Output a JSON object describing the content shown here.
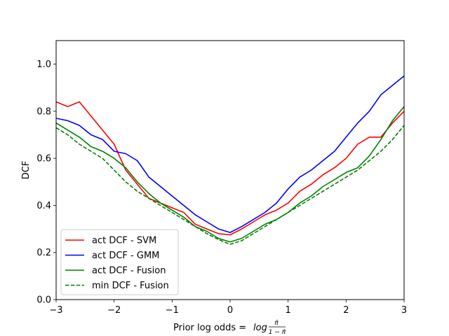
{
  "chart_data": {
    "type": "line",
    "title": "",
    "xlabel_prefix": "Prior log odds = ",
    "xlabel_func": "log",
    "xlabel_num": "π̃",
    "xlabel_den": "1 − π̃",
    "ylabel": "DCF",
    "xlim": [
      -3,
      3
    ],
    "ylim": [
      0,
      1.1
    ],
    "xticks": [
      -3,
      -2,
      -1,
      0,
      1,
      2,
      3
    ],
    "xtick_labels": [
      "−3",
      "−2",
      "−1",
      "0",
      "1",
      "2",
      "3"
    ],
    "yticks": [
      0.0,
      0.2,
      0.4,
      0.6,
      0.8,
      1.0
    ],
    "ytick_labels": [
      "0.0",
      "0.2",
      "0.4",
      "0.6",
      "0.8",
      "1.0"
    ],
    "grid": false,
    "legend_position": "lower-left",
    "x": [
      -3.0,
      -2.8,
      -2.6,
      -2.4,
      -2.2,
      -2.0,
      -1.8,
      -1.6,
      -1.4,
      -1.2,
      -1.0,
      -0.8,
      -0.6,
      -0.4,
      -0.2,
      0.0,
      0.2,
      0.4,
      0.6,
      0.8,
      1.0,
      1.2,
      1.4,
      1.6,
      1.8,
      2.0,
      2.2,
      2.4,
      2.6,
      2.8,
      3.0
    ],
    "series": [
      {
        "name": "act DCF - SVM",
        "color": "#ff0000",
        "dash": "solid",
        "values": [
          0.84,
          0.82,
          0.84,
          0.78,
          0.72,
          0.66,
          0.55,
          0.49,
          0.43,
          0.41,
          0.39,
          0.37,
          0.32,
          0.3,
          0.28,
          0.275,
          0.3,
          0.33,
          0.36,
          0.38,
          0.41,
          0.46,
          0.49,
          0.53,
          0.56,
          0.6,
          0.66,
          0.69,
          0.69,
          0.75,
          0.8
        ]
      },
      {
        "name": "act DCF - GMM",
        "color": "#0000ff",
        "dash": "solid",
        "values": [
          0.77,
          0.76,
          0.74,
          0.7,
          0.68,
          0.63,
          0.62,
          0.59,
          0.52,
          0.48,
          0.44,
          0.4,
          0.36,
          0.33,
          0.3,
          0.285,
          0.31,
          0.34,
          0.37,
          0.41,
          0.47,
          0.52,
          0.55,
          0.59,
          0.63,
          0.69,
          0.75,
          0.8,
          0.87,
          0.91,
          0.95
        ]
      },
      {
        "name": "act DCF - Fusion",
        "color": "#008000",
        "dash": "solid",
        "values": [
          0.75,
          0.72,
          0.69,
          0.65,
          0.63,
          0.6,
          0.56,
          0.5,
          0.45,
          0.41,
          0.38,
          0.35,
          0.31,
          0.29,
          0.26,
          0.245,
          0.26,
          0.29,
          0.32,
          0.34,
          0.37,
          0.41,
          0.44,
          0.48,
          0.51,
          0.54,
          0.56,
          0.61,
          0.68,
          0.76,
          0.82
        ]
      },
      {
        "name": "min DCF - Fusion",
        "color": "#008000",
        "dash": "dashed",
        "values": [
          0.73,
          0.7,
          0.66,
          0.63,
          0.6,
          0.55,
          0.5,
          0.46,
          0.43,
          0.4,
          0.37,
          0.34,
          0.31,
          0.28,
          0.255,
          0.235,
          0.25,
          0.28,
          0.31,
          0.34,
          0.37,
          0.4,
          0.43,
          0.46,
          0.49,
          0.52,
          0.55,
          0.59,
          0.63,
          0.68,
          0.74
        ]
      }
    ]
  }
}
